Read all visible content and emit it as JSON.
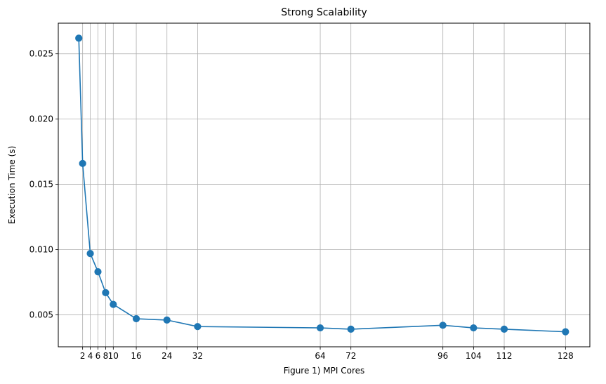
{
  "chart_data": {
    "type": "line",
    "title": "Strong Scalability",
    "xlabel": "Figure 1) MPI Cores",
    "ylabel": "Execution Time (s)",
    "xlim": [
      -4.35,
      134.35
    ],
    "ylim": [
      0.00255,
      0.02735
    ],
    "x_ticks": [
      2,
      4,
      6,
      8,
      10,
      16,
      24,
      32,
      64,
      72,
      96,
      104,
      112,
      128
    ],
    "x_tick_labels": [
      "2",
      "4",
      "6",
      "8",
      "10",
      "16",
      "24",
      "32",
      "64",
      "72",
      "96",
      "104",
      "112",
      "128"
    ],
    "y_ticks": [
      0.005,
      0.01,
      0.015,
      0.02,
      0.025
    ],
    "y_tick_labels": [
      "0.005",
      "0.010",
      "0.015",
      "0.020",
      "0.025"
    ],
    "grid": true,
    "series": [
      {
        "color": "#1f77b4",
        "marker": "circle",
        "x": [
          1,
          2,
          4,
          6,
          8,
          10,
          16,
          24,
          32,
          64,
          72,
          96,
          104,
          112,
          128
        ],
        "y": [
          0.0262,
          0.0166,
          0.0097,
          0.0083,
          0.0067,
          0.0058,
          0.0047,
          0.0046,
          0.0041,
          0.004,
          0.0039,
          0.0042,
          0.004,
          0.0039,
          0.0037
        ]
      }
    ]
  }
}
